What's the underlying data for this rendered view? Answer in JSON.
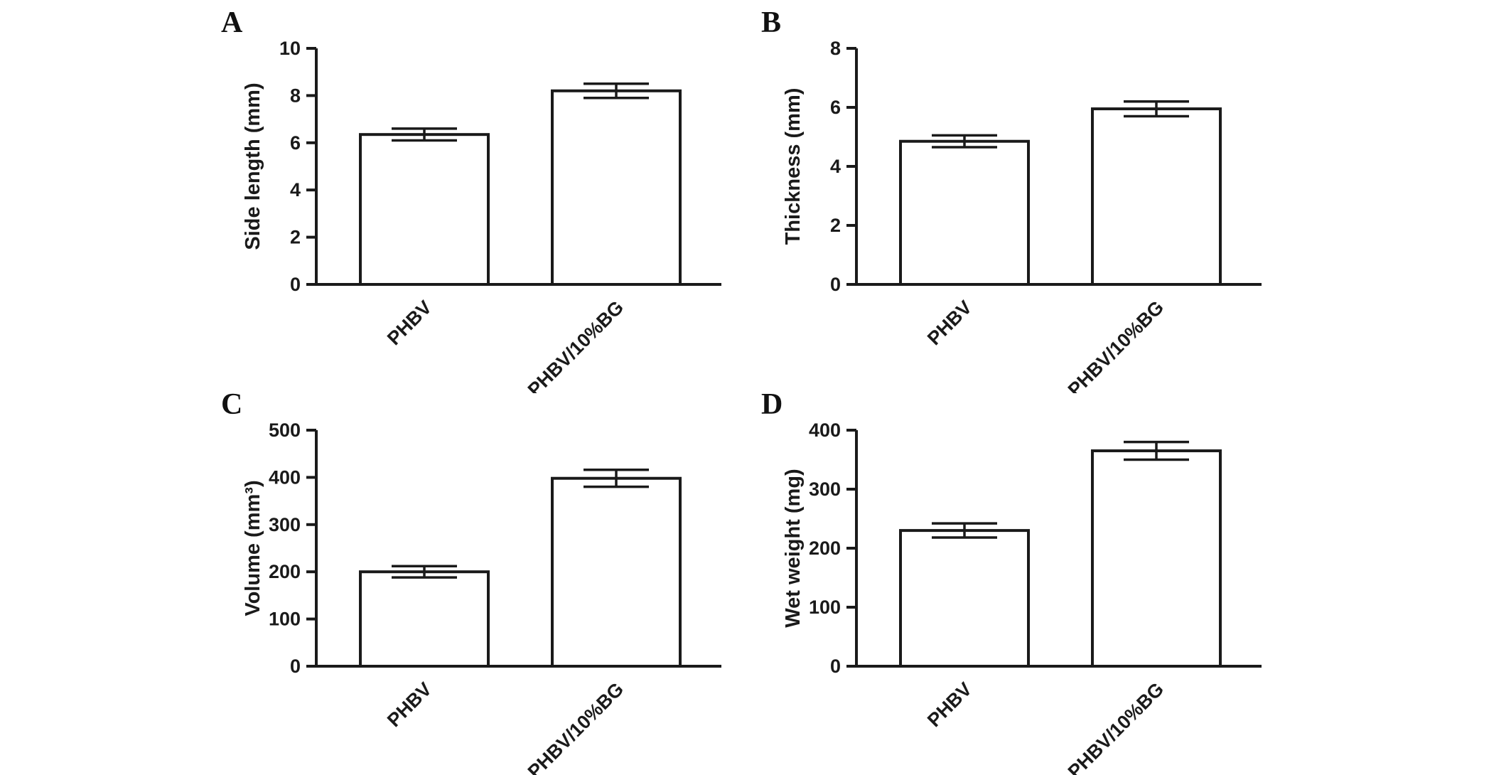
{
  "style": {
    "ink": "#1a1a1a",
    "bar_fill": "#ffffff",
    "background": "#ffffff"
  },
  "chart_data": [
    {
      "panel": "A",
      "type": "bar",
      "title": "",
      "xlabel": "",
      "ylabel": "Side length (mm)",
      "categories": [
        "PHBV",
        "PHBV/10%BG"
      ],
      "values": [
        6.35,
        8.2
      ],
      "errors": [
        0.25,
        0.3
      ],
      "ylim": [
        0,
        10
      ],
      "yticks": [
        0,
        2,
        4,
        6,
        8,
        10
      ],
      "grid": false,
      "legend": "none",
      "bar_style": "open-black-outline",
      "error_style": "symmetric-caps"
    },
    {
      "panel": "B",
      "type": "bar",
      "title": "",
      "xlabel": "",
      "ylabel": "Thickness (mm)",
      "categories": [
        "PHBV",
        "PHBV/10%BG"
      ],
      "values": [
        4.85,
        5.95
      ],
      "errors": [
        0.2,
        0.25
      ],
      "ylim": [
        0,
        8
      ],
      "yticks": [
        0,
        2,
        4,
        6,
        8
      ],
      "grid": false,
      "legend": "none",
      "bar_style": "open-black-outline",
      "error_style": "symmetric-caps"
    },
    {
      "panel": "C",
      "type": "bar",
      "title": "",
      "xlabel": "",
      "ylabel": "Volume (mm³)",
      "categories": [
        "PHBV",
        "PHBV/10%BG"
      ],
      "values": [
        200,
        398
      ],
      "errors": [
        12,
        18
      ],
      "ylim": [
        0,
        500
      ],
      "yticks": [
        0,
        100,
        200,
        300,
        400,
        500
      ],
      "grid": false,
      "legend": "none",
      "bar_style": "open-black-outline",
      "error_style": "symmetric-caps"
    },
    {
      "panel": "D",
      "type": "bar",
      "title": "",
      "xlabel": "",
      "ylabel": "Wet weight (mg)",
      "categories": [
        "PHBV",
        "PHBV/10%BG"
      ],
      "values": [
        230,
        365
      ],
      "errors": [
        12,
        15
      ],
      "ylim": [
        0,
        400
      ],
      "yticks": [
        0,
        100,
        200,
        300,
        400
      ],
      "grid": false,
      "legend": "none",
      "bar_style": "open-black-outline",
      "error_style": "symmetric-caps"
    }
  ]
}
